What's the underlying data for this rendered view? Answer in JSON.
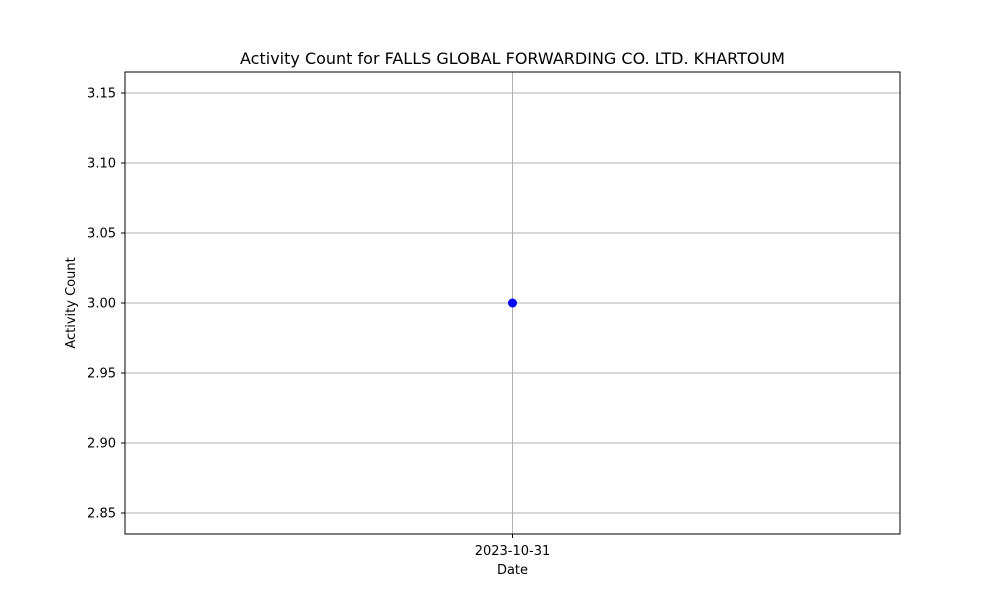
{
  "chart_data": {
    "type": "line",
    "title": "Activity Count for FALLS GLOBAL FORWARDING CO. LTD. KHARTOUM",
    "xlabel": "Date",
    "ylabel": "Activity Count",
    "x": [
      "2023-10-31"
    ],
    "series": [
      {
        "values": [
          3.0
        ],
        "color": "#0000ff",
        "marker": "circle"
      }
    ],
    "ylim": [
      2.835,
      3.165
    ],
    "yticks": [
      "2.85",
      "2.90",
      "2.95",
      "3.00",
      "3.05",
      "3.10",
      "3.15"
    ],
    "xticks": [
      "2023-10-31"
    ],
    "grid": true
  }
}
